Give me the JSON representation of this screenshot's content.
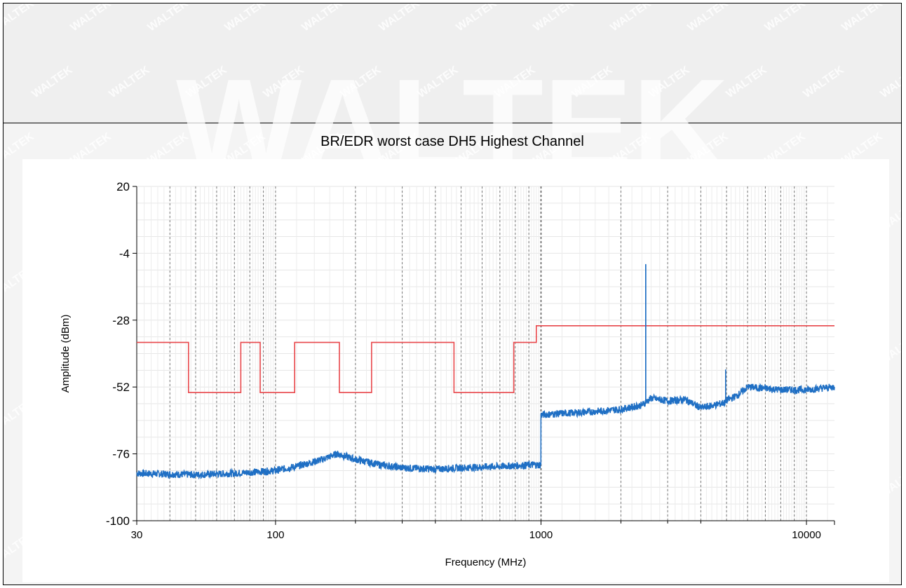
{
  "watermark_text": "WALTEK",
  "chart_data": {
    "type": "line",
    "title": "BR/EDR worst case DH5 Highest Channel",
    "xlabel": "Frequency (MHz)",
    "ylabel": "Amplitude (dBm)",
    "x_scale": "log",
    "xlim": [
      30,
      12750
    ],
    "ylim": [
      -100,
      20
    ],
    "x_tick_labels": [
      "30",
      "100",
      "1000",
      "10000"
    ],
    "y_tick_labels": [
      "20",
      "-4",
      "-28",
      "-52",
      "-76",
      "-100"
    ],
    "grid": true,
    "colors": {
      "limit": "#e8464a",
      "trace": "#1f6fc4"
    },
    "series": [
      {
        "role": "limit",
        "x": [
          30,
          47,
          47,
          74,
          74,
          87.5,
          87.5,
          118,
          118,
          174,
          174,
          230,
          230,
          470,
          470,
          790,
          790,
          960,
          960,
          12750
        ],
        "y": [
          -36,
          -36,
          -54,
          -54,
          -36,
          -36,
          -54,
          -54,
          -36,
          -36,
          -54,
          -54,
          -36,
          -36,
          -54,
          -54,
          -36,
          -36,
          -30,
          -30
        ]
      },
      {
        "role": "trace",
        "x": [
          30,
          50,
          70,
          100,
          120,
          150,
          170,
          185,
          200,
          250,
          300,
          400,
          500,
          700,
          900,
          999,
          999.5,
          1000,
          1200,
          1500,
          2000,
          2400,
          2480,
          2480,
          2481,
          2481,
          2600,
          3000,
          3500,
          4000,
          4500,
          4960,
          4960,
          4961,
          4961,
          5500,
          6000,
          7000,
          8000,
          10000,
          12750
        ],
        "y": [
          -83,
          -83.5,
          -83,
          -82,
          -80.5,
          -78,
          -76,
          -77,
          -78,
          -80,
          -81,
          -81.5,
          -81,
          -80.5,
          -80,
          -80,
          -62,
          -62,
          -61.5,
          -61,
          -60,
          -58.5,
          -57.5,
          -8,
          -8,
          -57.5,
          -56,
          -57,
          -56.5,
          -59.5,
          -58.5,
          -57.5,
          -46,
          -46,
          -57,
          -55,
          -52,
          -52.5,
          -53,
          -53,
          -52
        ]
      }
    ]
  }
}
